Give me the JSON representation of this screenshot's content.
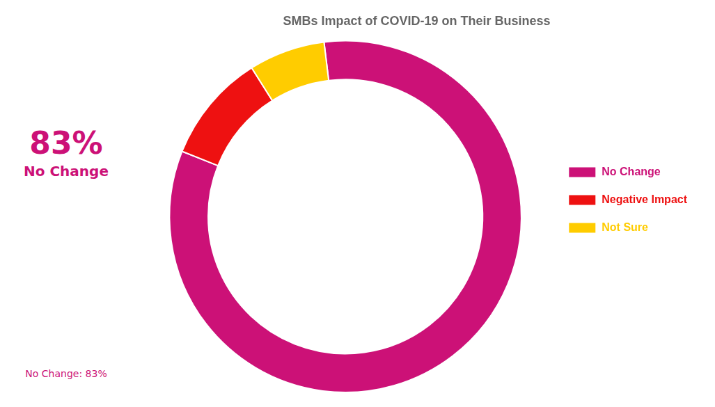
{
  "chart_data": {
    "type": "doughnut",
    "title": "SMBs Impact of COVID-19 on Their Business",
    "categories": [
      "No Change",
      "Negative Impact",
      "Not Sure"
    ],
    "values": [
      83,
      10,
      7
    ],
    "colors": [
      "#cc1177",
      "#ee1111",
      "#ffcc00"
    ],
    "annotations": [
      "83%",
      "No Change",
      "No Change: 83%"
    ],
    "legend": "right"
  }
}
